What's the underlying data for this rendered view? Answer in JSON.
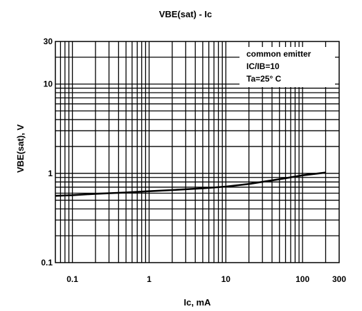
{
  "chart_data": {
    "type": "line",
    "title": "VBE(sat) - Ic",
    "xlabel": "Ic, mA",
    "ylabel": "VBE(sat), V",
    "xscale": "log",
    "yscale": "log",
    "xlim": [
      0.06,
      300
    ],
    "ylim": [
      0.1,
      30
    ],
    "x_ticks": [
      {
        "value": 0.1,
        "label": "0.1"
      },
      {
        "value": 1,
        "label": "1"
      },
      {
        "value": 10,
        "label": "10"
      },
      {
        "value": 100,
        "label": "100"
      },
      {
        "value": 300,
        "label": "300"
      }
    ],
    "y_ticks": [
      {
        "value": 0.1,
        "label": "0.1"
      },
      {
        "value": 1,
        "label": "1"
      },
      {
        "value": 10,
        "label": "10"
      },
      {
        "value": 30,
        "label": "30"
      }
    ],
    "grid": true,
    "legend": {
      "position": "top-right",
      "lines": [
        "common emitter",
        "IC/IB=10",
        "Ta=25° C"
      ]
    },
    "series": [
      {
        "color": "#000000",
        "x": [
          0.06,
          0.1,
          0.2,
          0.5,
          1,
          2,
          5,
          10,
          20,
          50,
          100,
          200
        ],
        "y": [
          0.56,
          0.57,
          0.59,
          0.61,
          0.63,
          0.65,
          0.68,
          0.71,
          0.76,
          0.86,
          0.95,
          1.02
        ]
      }
    ]
  }
}
